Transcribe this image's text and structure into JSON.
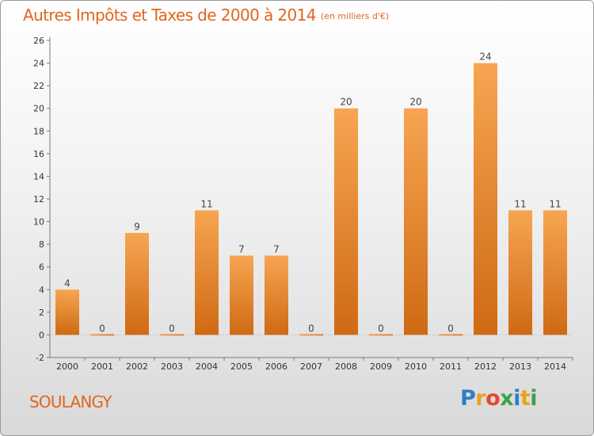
{
  "chart_data": {
    "type": "bar",
    "title": "Autres Impôts et Taxes de 2000 à 2014",
    "unit_note": "(en milliers d'€)",
    "categories": [
      "2000",
      "2001",
      "2002",
      "2003",
      "2004",
      "2005",
      "2006",
      "2007",
      "2008",
      "2009",
      "2010",
      "2011",
      "2012",
      "2013",
      "2014"
    ],
    "values": [
      4,
      0,
      9,
      0,
      11,
      7,
      7,
      0,
      20,
      0,
      20,
      0,
      24,
      11,
      11
    ],
    "yticks": [
      -2,
      0,
      2,
      4,
      6,
      8,
      10,
      12,
      14,
      16,
      18,
      20,
      22,
      24,
      26
    ],
    "ylim": [
      -2,
      26
    ],
    "grid": false,
    "bar_color": "#f0913a"
  },
  "place_name": "SOULANGY",
  "logo": {
    "letters": [
      "P",
      "r",
      "o",
      "x",
      "i",
      "t",
      "i"
    ],
    "colors": [
      "#2f7fc4",
      "#e8a21c",
      "#e04b2a",
      "#3aa14c",
      "#2f7fc4",
      "#e8a21c",
      "#3aa14c"
    ]
  }
}
